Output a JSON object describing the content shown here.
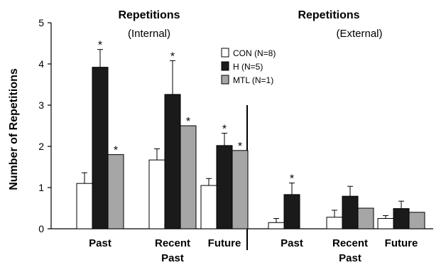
{
  "chart_data": {
    "type": "bar",
    "panels": [
      {
        "title": "Repetitions",
        "subtitle": "(Internal)",
        "categories": [
          "Past",
          "Recent",
          "Future"
        ],
        "series": [
          {
            "name": "CON (N=8)",
            "values": [
              1.1,
              1.67,
              1.05
            ],
            "errors": [
              0.26,
              0.27,
              0.17
            ],
            "stars": [
              false,
              false,
              false
            ]
          },
          {
            "name": "H (N=5)",
            "values": [
              3.92,
              3.26,
              2.02
            ],
            "errors": [
              0.43,
              0.82,
              0.3
            ],
            "stars": [
              true,
              true,
              true
            ]
          },
          {
            "name": "MTL (N=1)",
            "values": [
              1.8,
              2.5,
              1.9
            ],
            "errors": [
              0,
              0,
              0
            ],
            "stars": [
              true,
              true,
              true
            ]
          }
        ]
      },
      {
        "title": "Repetitions",
        "subtitle": "(External)",
        "categories": [
          "Past",
          "Recent",
          "Future"
        ],
        "series": [
          {
            "name": "CON (N=8)",
            "values": [
              0.15,
              0.28,
              0.25
            ],
            "errors": [
              0.1,
              0.17,
              0.07
            ],
            "stars": [
              false,
              false,
              false
            ]
          },
          {
            "name": "H (N=5)",
            "values": [
              0.83,
              0.79,
              0.49
            ],
            "errors": [
              0.28,
              0.24,
              0.18
            ],
            "stars": [
              true,
              false,
              false
            ]
          },
          {
            "name": "MTL (N=1)",
            "values": [
              0,
              0.5,
              0.4
            ],
            "errors": [
              0,
              0,
              0
            ],
            "stars": [
              false,
              false,
              false
            ]
          }
        ]
      }
    ],
    "ylabel": "Number of Repetitions",
    "ylim": [
      0,
      5
    ],
    "yticks": [
      "0",
      "1",
      "2",
      "3",
      "4",
      "5"
    ],
    "xlabel_under_recent": "Past",
    "star_symbol": "*",
    "series_colors": [
      "#ffffff",
      "#1a1a1a",
      "#a6a6a6"
    ],
    "grid": false,
    "legend_position": "top-center, inside first panel"
  }
}
